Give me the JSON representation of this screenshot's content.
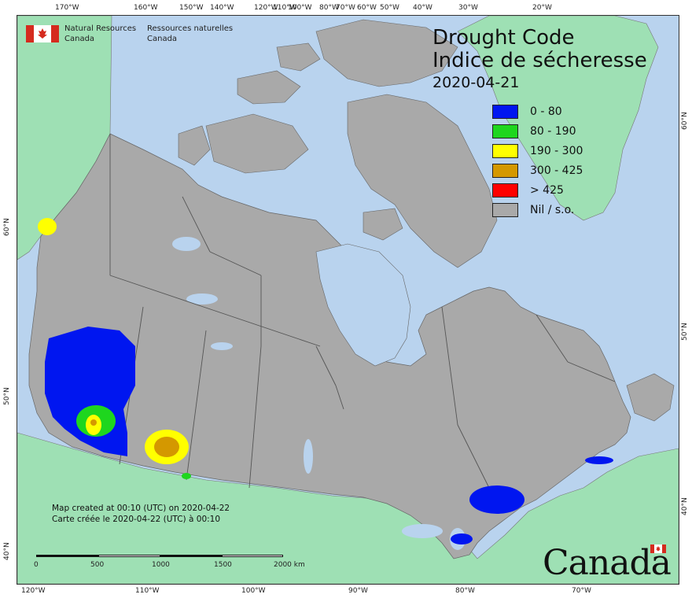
{
  "org": {
    "name_en_line1": "Natural Resources",
    "name_en_line2": "Canada",
    "name_fr_line1": "Ressources naturelles",
    "name_fr_line2": "Canada"
  },
  "title": {
    "en": "Drought Code",
    "fr": "Indice de sécheresse",
    "date": "2020-04-21"
  },
  "legend": [
    {
      "label": "0 - 80",
      "color": "#0016f0"
    },
    {
      "label": "80 - 190",
      "color": "#1ed61e"
    },
    {
      "label": "190 - 300",
      "color": "#ffff00"
    },
    {
      "label": "300 - 425",
      "color": "#d49800"
    },
    {
      "label": "> 425",
      "color": "#ff0000"
    },
    {
      "label": "Nil / s.o.",
      "color": "#a9a9a9"
    }
  ],
  "note": {
    "line1": "Map created at 00:10 (UTC) on 2020-04-22",
    "line2": "Carte créée le 2020-04-22 (UTC) à 00:10"
  },
  "scale": {
    "labels": [
      "0",
      "500",
      "1000",
      "1500",
      "2000 km"
    ]
  },
  "top_ticks": [
    "170°W",
    "160°W",
    "150°W",
    "140°W",
    "120°W",
    "110°W",
    "100°W",
    "80°W",
    "70°W",
    "60°W",
    "50°W",
    "40°W",
    "30°W",
    "20°W"
  ],
  "bottom_ticks": [
    "120°W",
    "110°W",
    "100°W",
    "90°W",
    "80°W",
    "70°W"
  ],
  "left_ticks": [
    "60°N",
    "50°N",
    "40°N"
  ],
  "right_ticks": [
    "60°N",
    "50°N",
    "40°N"
  ],
  "wordmark": "Canada",
  "colors": {
    "water": "#b9d3ee",
    "foreign_land": "#9ee0b4",
    "canada_nil": "#a9a9a9",
    "boundary": "#555555"
  }
}
